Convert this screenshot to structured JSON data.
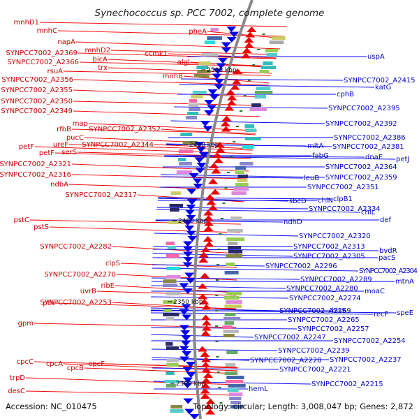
{
  "title": "Synechococcus sp. PCC 7002, complete genome",
  "footer": {
    "accession": "Accession: NC_010475",
    "summary": "Topology: circular; Length: 3,008,047 bp; Genes: 2,872"
  },
  "colors": {
    "forward": "#ee0000",
    "reverse": "#0000ee",
    "backbone": "#888888",
    "ticks": "#227722"
  },
  "ticks": [
    "2500 kbp",
    "2450 kbp",
    "2400 kbp",
    "2350 kbp",
    "2300 kbp"
  ],
  "forward_labels": [
    "mnhD1",
    "mnhC",
    "napA",
    "mnhD2",
    "SYNPCC7002_A2369",
    "bicA",
    "SYNPCC7002_A2366",
    "trx",
    "pheA",
    "ccmk1",
    "algI",
    "mnhB",
    "rsuA",
    "SYNPCC7002_A2356",
    "SYNPCC7002_A2355",
    "SYNPCC7002_A2350",
    "SYNPCC7002_A2349",
    "map",
    "rfbB",
    "SYNPCC7002_A2352",
    "pucC",
    "SYNPCC7002_A2344",
    "ureF",
    "petF",
    "serS",
    "petF",
    "SYNPCC7002_A2321",
    "SYNPCC7002_A2316",
    "ndbA",
    "SYNPCC7002_A2317",
    "pstC",
    "pstS",
    "SYNPCC7002_A2282",
    "clpS",
    "SYNPCC7002_A2270",
    "ribE",
    "uvrB",
    "pth",
    "SYNPCC7002_A2253",
    "gpm",
    "cpcC",
    "cpcA",
    "cpcF",
    "cpcB",
    "trpD",
    "desC"
  ],
  "reverse_labels": [
    "uspA",
    "SYNPCC7002_A2415",
    "katG",
    "cphB",
    "SYNPCC7002_A2395",
    "SYNPCC7002_A2392",
    "SYNPCC7002_A2386",
    "mltA",
    "SYNPCC7002_A2381",
    "fabG",
    "dnaE",
    "petJ",
    "SYNPCC7002_A2364",
    "leuB",
    "SYNPCC7002_A2359",
    "SYNPCC7002_A2351",
    "clpB1",
    "sbcD",
    "chlN",
    "SYNPCC7002_A2334",
    "chlL",
    "def",
    "ndhD",
    "SYNPCC7002_A2320",
    "SYNPCC7002_A2313",
    "bvdR",
    "SYNPCC7002_A2305",
    "pacS",
    "SYNPCC7002_A2296",
    "SYNPCC7002_A2304",
    "mtnA",
    "SYNPCC7002_A2289",
    "SYNPCC7002_A2280",
    "moaC",
    "SYNPCC7002_A2274",
    "SYNPCC7002_A2269",
    "hisS",
    "recF",
    "speE",
    "SYNPCC7002_A2265",
    "SYNPCC7002_A2257",
    "SYNPCC7002_A2247",
    "SYNPCC7002_A2254",
    "SYNPCC7002_A2239",
    "SYNPCC7002_A2228",
    "SYNPCC7002_A2237",
    "SYNPCC7002_A2221",
    "SYNPCC7002_A2215",
    "hemL"
  ]
}
